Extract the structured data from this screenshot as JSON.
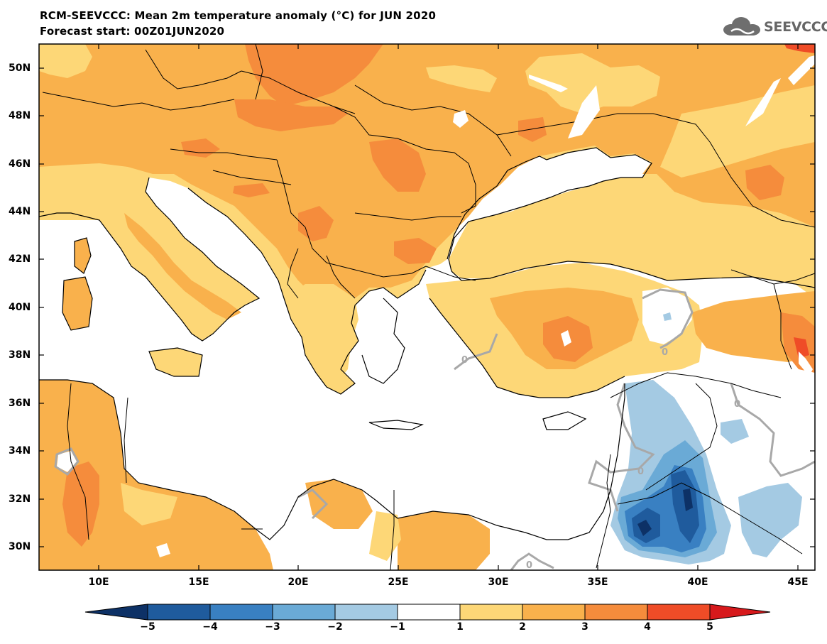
{
  "title": {
    "line1": "RCM-SEEVCCC: Mean 2m temperature anomaly (°C) for JUN 2020",
    "line2": "Forecast start: 00Z01JUN2020"
  },
  "logo": {
    "text": "SEEVCCC",
    "icon": "cloud-icon"
  },
  "map": {
    "lon_range": [
      7,
      45.5
    ],
    "lat_range": [
      29,
      51
    ],
    "latitude_labels": [
      "50N",
      "48N",
      "46N",
      "44N",
      "42N",
      "40N",
      "38N",
      "36N",
      "34N",
      "32N",
      "30N"
    ],
    "longitude_labels": [
      "10E",
      "15E",
      "20E",
      "25E",
      "30E",
      "35E",
      "40E",
      "45E"
    ],
    "contour_label": "0",
    "colors": {
      "sea": "#ffffff",
      "anomaly_0_1": "#ffffff",
      "anomaly_1_2": "#fdd777",
      "anomaly_2_3": "#f9b14c",
      "anomaly_3_4": "#f58c3c",
      "anomaly_4_5": "#ef4c27",
      "anomaly_gt_5": "#d7191c",
      "anomaly_m1_m2": "#a4cae3",
      "anomaly_m2_m3": "#6aaad6",
      "anomaly_m3_m4": "#3980c2",
      "anomaly_m4_m5": "#1f5b9d",
      "anomaly_lt_m5": "#0d3166",
      "zero_contour": "#a8a8a8",
      "borders": "#000000"
    }
  },
  "colorbar": {
    "labels": [
      "−5",
      "−4",
      "−3",
      "−2",
      "−1",
      "1",
      "2",
      "3",
      "4",
      "5"
    ],
    "colors": [
      "#0d3166",
      "#1f5b9d",
      "#3980c2",
      "#6aaad6",
      "#a4cae3",
      "#ffffff",
      "#fdd777",
      "#f9b14c",
      "#f58c3c",
      "#ef4c27",
      "#d7191c"
    ]
  }
}
